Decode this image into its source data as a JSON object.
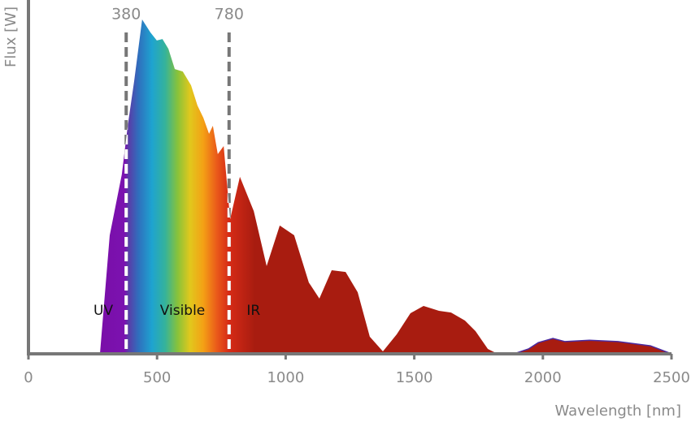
{
  "chart_data": {
    "type": "area",
    "x_label": "Wavelength [nm]",
    "y_label": "Flux [W]",
    "x": [
      278,
      316,
      363,
      386,
      411,
      442,
      474,
      499,
      521,
      544,
      569,
      600,
      632,
      657,
      680,
      702,
      717,
      736,
      759,
      784,
      822,
      876,
      926,
      977,
      1033,
      1090,
      1131,
      1179,
      1233,
      1280,
      1327,
      1378,
      1432,
      1485,
      1536,
      1596,
      1643,
      1697,
      1738,
      1786,
      1824,
      1887,
      1944,
      1982,
      2039,
      2086,
      2181,
      2292,
      2418,
      2500
    ],
    "values": [
      0,
      33.9,
      51.3,
      65.2,
      78,
      95.6,
      91.9,
      89.6,
      90,
      87.2,
      81.4,
      80.7,
      76.8,
      71,
      67.5,
      62.9,
      65.2,
      57.1,
      59.4,
      38.5,
      50.6,
      40.8,
      25.1,
      36.7,
      33.9,
      20.4,
      15.8,
      23.9,
      23.4,
      17.6,
      4.9,
      0.7,
      5.6,
      11.6,
      13.7,
      12.3,
      11.8,
      9.5,
      6.5,
      1.4,
      0,
      0,
      1.4,
      3.2,
      4.4,
      3.5,
      3.9,
      3.5,
      2.3,
      0
    ],
    "color": "#a81c10",
    "xlim": [
      0,
      2500
    ],
    "ylim": [
      0,
      100
    ],
    "xticks": [
      0,
      500,
      1000,
      1500,
      2000,
      2500
    ],
    "vlines": [
      380,
      780
    ],
    "regions": [
      "UV",
      "Visible",
      "IR"
    ]
  }
}
